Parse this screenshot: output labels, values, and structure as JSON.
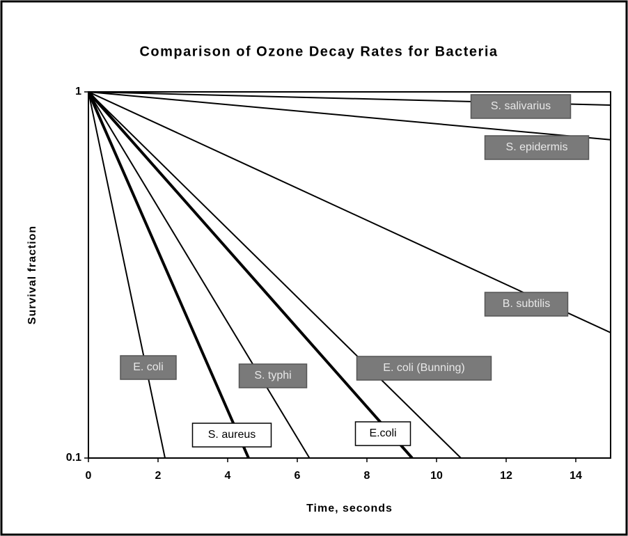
{
  "chart_data": {
    "type": "line",
    "title": "Comparison of Ozone Decay Rates for Bacteria",
    "xlabel": "Time, seconds",
    "ylabel": "Survival fraction",
    "log_y": true,
    "grid": false,
    "xlim": [
      0,
      15
    ],
    "xticks": [
      0,
      2,
      4,
      6,
      8,
      10,
      12,
      14
    ],
    "ylim": [
      0.1,
      1
    ],
    "yticks": [
      0.1,
      1
    ],
    "series": [
      {
        "name": "S. salivarius",
        "color": "#000000",
        "x": [
          0,
          15
        ],
        "values": [
          1,
          0.92
        ]
      },
      {
        "name": "S. epidermis",
        "color": "#000000",
        "x": [
          0,
          15
        ],
        "values": [
          1,
          0.74
        ]
      },
      {
        "name": "B. subtilis",
        "color": "#000000",
        "x": [
          0,
          15
        ],
        "values": [
          1,
          0.22
        ]
      },
      {
        "name": "E. coli",
        "color": "#000000",
        "x": [
          0,
          2.2
        ],
        "values": [
          1,
          0.1
        ]
      },
      {
        "name": "S. typhi",
        "color": "#000000",
        "x": [
          0,
          6.35
        ],
        "values": [
          1,
          0.1
        ]
      },
      {
        "name": "E. coli (Bunning)",
        "color": "#000000",
        "x": [
          0,
          10.7
        ],
        "values": [
          1,
          0.1
        ]
      },
      {
        "name": "S. aureus",
        "color": "#000000",
        "x": [
          0,
          4.6
        ],
        "values": [
          1,
          0.1
        ]
      },
      {
        "name": "E.coli",
        "color": "#000000",
        "x": [
          0,
          9.3
        ],
        "values": [
          1,
          0.1
        ]
      }
    ]
  }
}
